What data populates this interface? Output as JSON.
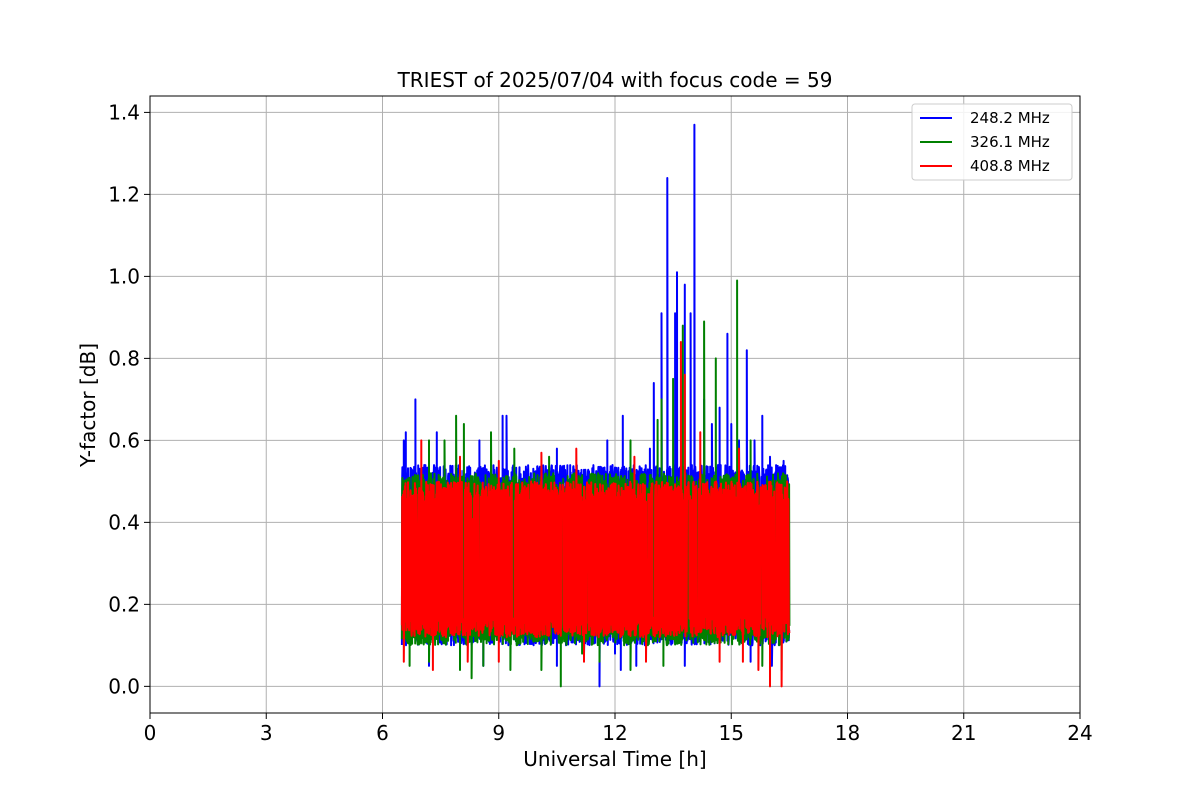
{
  "chart_data": {
    "type": "line",
    "title": "TRIEST of 2025/07/04 with focus code = 59",
    "xlabel": "Universal Time [h]",
    "ylabel": "Y-factor [dB]",
    "xlim": [
      0,
      24
    ],
    "ylim": [
      -0.065,
      1.44
    ],
    "xticks": [
      0,
      3,
      6,
      9,
      12,
      15,
      18,
      21,
      24
    ],
    "yticks": [
      0.0,
      0.2,
      0.4,
      0.6,
      0.8,
      1.0,
      1.2,
      1.4
    ],
    "ytick_labels": [
      "0.0",
      "0.2",
      "0.4",
      "0.6",
      "0.8",
      "1.0",
      "1.2",
      "1.4"
    ],
    "grid": true,
    "legend_position": "top-right",
    "series": [
      {
        "name": "248.2 MHz",
        "color": "#0000ff",
        "x_range": [
          6.5,
          16.5
        ],
        "band": [
          0.1,
          0.54
        ],
        "peaks": [
          [
            6.55,
            0.6
          ],
          [
            6.6,
            0.62
          ],
          [
            6.85,
            0.7
          ],
          [
            7.4,
            0.62
          ],
          [
            8.5,
            0.6
          ],
          [
            9.1,
            0.66
          ],
          [
            9.2,
            0.66
          ],
          [
            10.5,
            0.58
          ],
          [
            11.8,
            0.6
          ],
          [
            12.2,
            0.66
          ],
          [
            12.9,
            0.58
          ],
          [
            13.0,
            0.74
          ],
          [
            13.2,
            0.91
          ],
          [
            13.35,
            1.24
          ],
          [
            13.55,
            0.91
          ],
          [
            13.6,
            1.01
          ],
          [
            13.8,
            0.98
          ],
          [
            13.95,
            0.91
          ],
          [
            14.05,
            1.37
          ],
          [
            14.3,
            0.7
          ],
          [
            14.5,
            0.64
          ],
          [
            14.7,
            0.68
          ],
          [
            14.9,
            0.86
          ],
          [
            15.0,
            0.64
          ],
          [
            15.2,
            0.6
          ],
          [
            15.4,
            0.82
          ],
          [
            15.6,
            0.6
          ],
          [
            15.8,
            0.66
          ],
          [
            16.0,
            0.56
          ],
          [
            16.35,
            0.55
          ],
          [
            7.2,
            0.05
          ],
          [
            8.6,
            0.05
          ],
          [
            10.5,
            0.05
          ],
          [
            11.2,
            0.08
          ],
          [
            11.6,
            0.0
          ],
          [
            12.0,
            0.08
          ],
          [
            12.15,
            0.04
          ],
          [
            12.55,
            0.05
          ],
          [
            13.8,
            0.05
          ],
          [
            15.5,
            0.06
          ],
          [
            16.05,
            0.05
          ]
        ]
      },
      {
        "name": "326.1 MHz",
        "color": "#008000",
        "x_range": [
          6.5,
          16.5
        ],
        "band": [
          0.1,
          0.52
        ],
        "peaks": [
          [
            7.2,
            0.6
          ],
          [
            7.6,
            0.6
          ],
          [
            7.9,
            0.66
          ],
          [
            8.1,
            0.64
          ],
          [
            8.8,
            0.62
          ],
          [
            9.4,
            0.58
          ],
          [
            10.3,
            0.56
          ],
          [
            12.4,
            0.6
          ],
          [
            13.1,
            0.65
          ],
          [
            13.2,
            0.7
          ],
          [
            13.5,
            0.75
          ],
          [
            13.75,
            0.88
          ],
          [
            14.3,
            0.89
          ],
          [
            14.6,
            0.8
          ],
          [
            15.15,
            0.99
          ],
          [
            15.5,
            0.6
          ],
          [
            6.7,
            0.05
          ],
          [
            7.2,
            0.06
          ],
          [
            8.0,
            0.04
          ],
          [
            8.3,
            0.02
          ],
          [
            8.6,
            0.05
          ],
          [
            9.3,
            0.04
          ],
          [
            10.1,
            0.04
          ],
          [
            10.6,
            0.0
          ],
          [
            11.15,
            0.08
          ],
          [
            11.6,
            0.06
          ],
          [
            12.4,
            0.04
          ],
          [
            13.25,
            0.05
          ],
          [
            15.8,
            0.05
          ],
          [
            16.3,
            0.04
          ]
        ]
      },
      {
        "name": "408.8 MHz",
        "color": "#ff0000",
        "x_range": [
          6.5,
          16.5
        ],
        "band": [
          0.12,
          0.5
        ],
        "peaks": [
          [
            7.0,
            0.6
          ],
          [
            8.0,
            0.56
          ],
          [
            9.0,
            0.55
          ],
          [
            10.1,
            0.57
          ],
          [
            11.0,
            0.58
          ],
          [
            12.5,
            0.56
          ],
          [
            13.7,
            0.84
          ],
          [
            13.8,
            0.76
          ],
          [
            14.2,
            0.62
          ],
          [
            15.2,
            0.58
          ],
          [
            6.55,
            0.06
          ],
          [
            7.3,
            0.04
          ],
          [
            8.2,
            0.06
          ],
          [
            9.0,
            0.06
          ],
          [
            11.2,
            0.06
          ],
          [
            12.8,
            0.06
          ],
          [
            14.7,
            0.06
          ],
          [
            15.3,
            0.06
          ],
          [
            15.7,
            0.04
          ],
          [
            16.0,
            0.0
          ],
          [
            16.3,
            0.0
          ]
        ]
      }
    ]
  }
}
